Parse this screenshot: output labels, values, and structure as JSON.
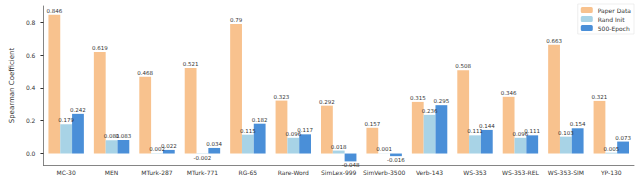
{
  "chart_data": {
    "type": "bar",
    "categories": [
      "MC-30",
      "MEN",
      "MTurk-287",
      "MTurk-771",
      "RG-65",
      "Rare-Word",
      "SimLex-999",
      "SimVerb-3500",
      "Verb-143",
      "WS-353",
      "WS-353-REL",
      "WS-353-SIM",
      "YP-130"
    ],
    "series": [
      {
        "name": "Paper Data",
        "color": "#f8c28e",
        "values": [
          0.846,
          0.619,
          0.468,
          0.521,
          0.79,
          0.323,
          0.292,
          0.157,
          0.315,
          0.508,
          0.346,
          0.663,
          0.321
        ]
      },
      {
        "name": "Rand Init",
        "color": "#a8d3e6",
        "values": [
          0.179,
          0.081,
          0.002,
          -0.002,
          0.115,
          0.096,
          0.018,
          0.001,
          0.236,
          0.111,
          0.096,
          0.103,
          0.005
        ]
      },
      {
        "name": "500-Epoch",
        "color": "#4a8fd8",
        "values": [
          0.242,
          0.083,
          0.022,
          0.034,
          0.182,
          0.117,
          -0.048,
          -0.016,
          0.295,
          0.144,
          0.111,
          0.154,
          0.073
        ]
      }
    ],
    "y_label": "Spearman Coefficient",
    "ylim": [
      -0.07,
      0.9
    ],
    "yticks": [
      {
        "value": 0,
        "label": "0.0"
      },
      0.2,
      0.4,
      0.6,
      0.8
    ],
    "grid": false,
    "legend": "upper right",
    "data_labels": true
  }
}
